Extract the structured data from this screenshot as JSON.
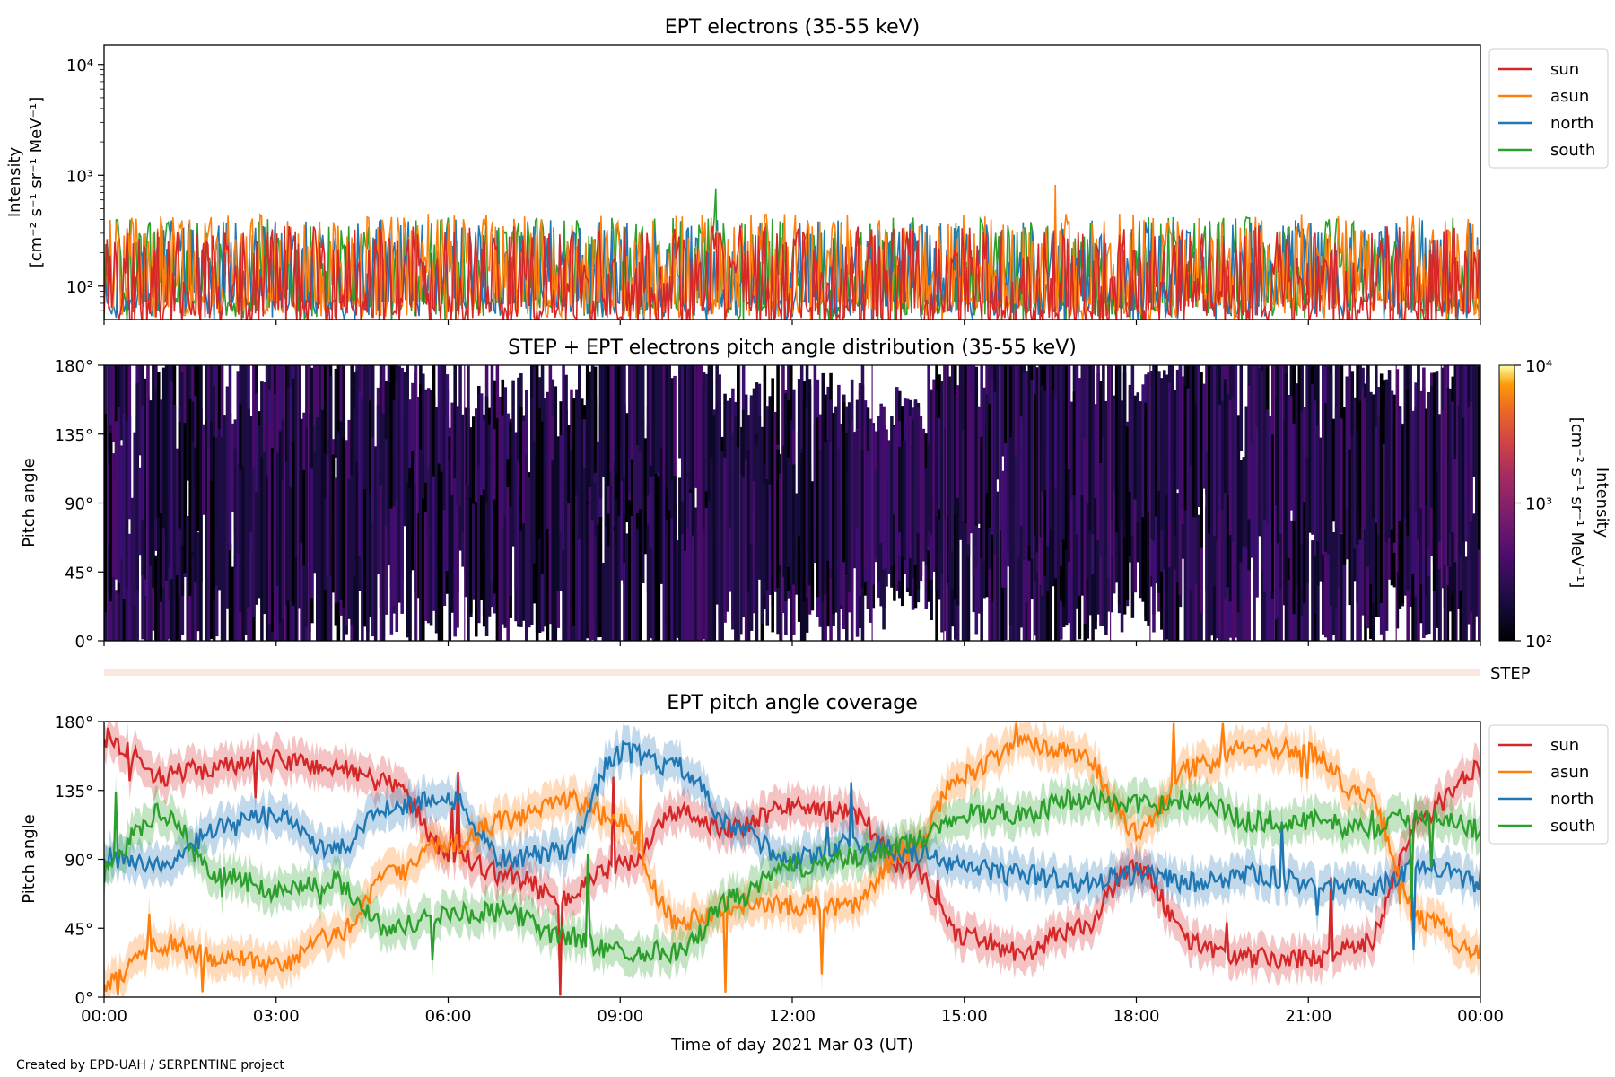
{
  "chart_data": [
    {
      "type": "line",
      "title": "EPT electrons (35-55 keV)",
      "ylabel_line1": "Intensity",
      "ylabel_line2": "[cm⁻² s⁻¹ sr⁻¹ MeV⁻¹]",
      "yscale": "log",
      "ylim": [
        50,
        15000
      ],
      "yticks": [
        {
          "value": 100,
          "label": "10²"
        },
        {
          "value": 1000,
          "label": "10³"
        },
        {
          "value": 10000,
          "label": "10⁴"
        }
      ],
      "x": [
        "00:00",
        "24:00"
      ],
      "legend_position": "outside right top",
      "series": [
        {
          "name": "sun",
          "color": "#d62728",
          "typical_range": [
            60,
            350
          ]
        },
        {
          "name": "asun",
          "color": "#ff7f0e",
          "typical_range": [
            70,
            450
          ],
          "peak": {
            "x": "16:35",
            "y": 820
          }
        },
        {
          "name": "north",
          "color": "#1f77b4",
          "typical_range": [
            70,
            400
          ]
        },
        {
          "name": "south",
          "color": "#2ca02c",
          "typical_range": [
            70,
            420
          ],
          "peak": {
            "x": "10:40",
            "y": 750
          }
        }
      ]
    },
    {
      "type": "heatmap",
      "title": "STEP + EPT electrons pitch angle distribution (35-55 keV)",
      "ylabel": "Pitch angle",
      "ylim": [
        0,
        180
      ],
      "yticks": [
        "0°",
        "45°",
        "90°",
        "135°",
        "180°"
      ],
      "colorbar": {
        "scale": "log",
        "range": [
          100,
          10000
        ],
        "ticks": [
          "10²",
          "10³",
          "10⁴"
        ],
        "label": "Intensity",
        "label_units": "[cm⁻² s⁻¹ sr⁻¹ MeV⁻¹]",
        "colormap": "inferno"
      }
    },
    {
      "type": "bar",
      "label": "STEP",
      "color": "#fde8e0"
    },
    {
      "type": "line",
      "title": "EPT pitch angle coverage",
      "ylabel": "Pitch angle",
      "ylim": [
        0,
        180
      ],
      "yticks": [
        "0°",
        "45°",
        "90°",
        "135°",
        "180°"
      ],
      "xlabel": "Time of day 2021 Mar 03 (UT)",
      "xticks": [
        "00:00",
        "03:00",
        "06:00",
        "09:00",
        "12:00",
        "15:00",
        "18:00",
        "21:00",
        "00:00"
      ],
      "legend_position": "outside right top",
      "series": [
        {
          "name": "sun",
          "color": "#d62728",
          "hours": [
            0,
            1,
            2,
            3,
            4,
            5,
            6,
            7,
            8,
            9,
            10,
            11,
            12,
            13,
            14,
            15,
            16,
            17,
            18,
            19,
            20,
            21,
            22,
            23,
            24
          ],
          "values": [
            170,
            145,
            150,
            155,
            150,
            140,
            95,
            80,
            65,
            85,
            120,
            110,
            125,
            120,
            85,
            40,
            30,
            45,
            85,
            35,
            25,
            25,
            35,
            120,
            150
          ]
        },
        {
          "name": "asun",
          "color": "#ff7f0e",
          "hours": [
            0,
            1,
            2,
            3,
            4,
            5,
            6,
            7,
            8,
            9,
            10,
            11,
            12,
            13,
            14,
            15,
            16,
            17,
            18,
            19,
            20,
            21,
            22,
            23,
            24
          ],
          "values": [
            10,
            35,
            25,
            20,
            40,
            80,
            100,
            115,
            130,
            115,
            50,
            60,
            60,
            60,
            95,
            145,
            165,
            160,
            110,
            150,
            165,
            160,
            130,
            50,
            30
          ]
        },
        {
          "name": "north",
          "color": "#1f77b4",
          "hours": [
            0,
            1,
            2,
            3,
            4,
            5,
            6,
            7,
            8,
            9,
            10,
            11,
            12,
            13,
            14,
            15,
            16,
            17,
            18,
            19,
            20,
            21,
            22,
            23,
            24
          ],
          "values": [
            90,
            85,
            110,
            120,
            95,
            125,
            130,
            90,
            95,
            160,
            150,
            110,
            90,
            100,
            95,
            85,
            80,
            75,
            80,
            75,
            80,
            75,
            70,
            85,
            75
          ]
        },
        {
          "name": "south",
          "color": "#2ca02c",
          "hours": [
            0,
            1,
            2,
            3,
            4,
            5,
            6,
            7,
            8,
            9,
            10,
            11,
            12,
            13,
            14,
            15,
            16,
            17,
            18,
            19,
            20,
            21,
            22,
            23,
            24
          ],
          "values": [
            90,
            120,
            80,
            70,
            75,
            45,
            55,
            55,
            40,
            30,
            30,
            65,
            85,
            90,
            100,
            120,
            120,
            130,
            125,
            130,
            115,
            115,
            110,
            120,
            110
          ]
        }
      ]
    }
  ],
  "credit": "Created by EPD-UAH / SERPENTINE project"
}
